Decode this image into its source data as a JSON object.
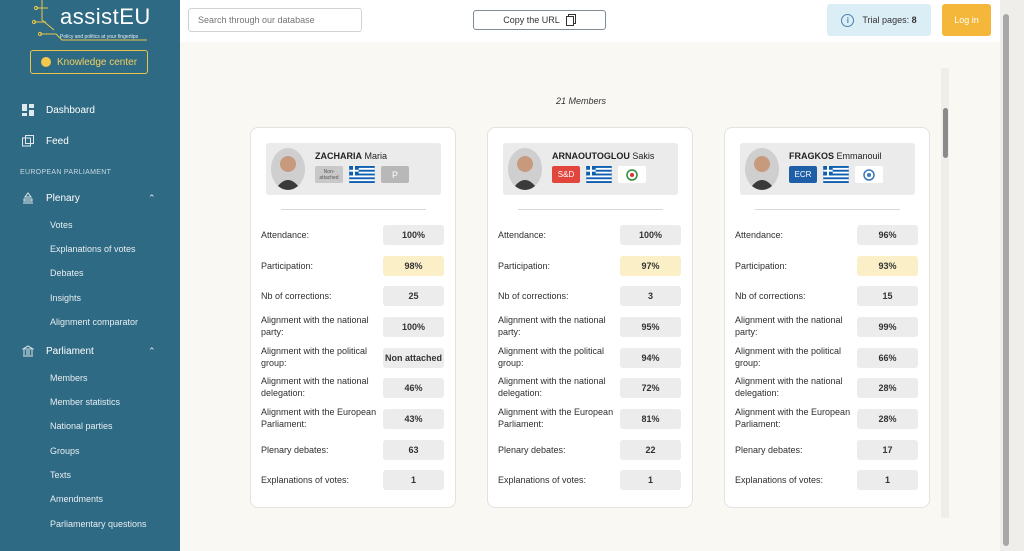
{
  "sidebar": {
    "logo_text": "assistEU",
    "logo_tagline": "Policy and politics at your fingertips",
    "knowledge_label": "Knowledge center",
    "dashboard_label": "Dashboard",
    "feed_label": "Feed",
    "section_ep": "EUROPEAN PARLIAMENT",
    "plenary_label": "Plenary",
    "plenary_items": [
      "Votes",
      "Explanations of votes",
      "Debates",
      "Insights",
      "Alignment comparator"
    ],
    "parliament_label": "Parliament",
    "parliament_items": [
      "Members",
      "Member statistics",
      "National parties",
      "Groups",
      "Texts",
      "Amendments",
      "Parliamentary questions"
    ]
  },
  "topbar": {
    "search_placeholder": "Search through our database",
    "copy_label": "Copy the URL",
    "trial_label": "Trial pages:",
    "trial_count": "8",
    "login_label": "Log in"
  },
  "members_count": "21 Members",
  "row_labels": [
    "Attendance:",
    "Participation:",
    "Nb of corrections:",
    "Alignment with the national party:",
    "Alignment with the political group:",
    "Alignment with the national delegation:",
    "Alignment with the European Parliament:",
    "Plenary debates:",
    "Explanations of votes:"
  ],
  "members": [
    {
      "surname": "ZACHARIA",
      "firstname": "Maria",
      "group_badge": "Non-attached",
      "group_color": "#c8c8c8",
      "party_badge": "P",
      "party_color": "#b8b8b8",
      "values": [
        "100%",
        "98%",
        "25",
        "100%",
        "Non attached",
        "46%",
        "43%",
        "63",
        "1"
      ]
    },
    {
      "surname": "ARNAOUTOGLOU",
      "firstname": "Sakis",
      "group_badge": "S&D",
      "group_color": "#e2453c",
      "party_badge": "",
      "party_color": "#ffffff",
      "values": [
        "100%",
        "97%",
        "3",
        "95%",
        "94%",
        "72%",
        "81%",
        "22",
        "1"
      ]
    },
    {
      "surname": "FRAGKOS",
      "firstname": "Emmanouil",
      "group_badge": "ECR",
      "group_color": "#1f5fa8",
      "party_badge": "",
      "party_color": "#ffffff",
      "values": [
        "96%",
        "93%",
        "15",
        "99%",
        "66%",
        "28%",
        "28%",
        "17",
        "1"
      ]
    }
  ]
}
